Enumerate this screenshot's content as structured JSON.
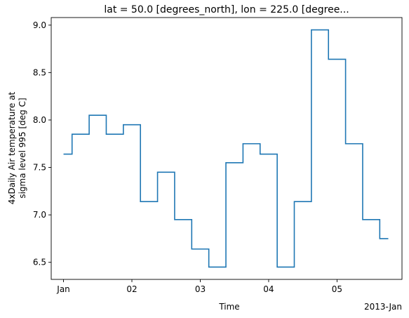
{
  "chart_data": {
    "type": "line",
    "drawstyle": "steps-mid",
    "title": "lat = 50.0 [degrees_north], lon = 225.0 [degree...",
    "xlabel": "Time",
    "ylabel_lines": [
      "4xDaily Air temperature at",
      "sigma level 995 [deg C]"
    ],
    "x_offset_label": "2013-Jan",
    "xlim": [
      -0.18,
      4.95
    ],
    "ylim": [
      6.32,
      9.08
    ],
    "x_ticks": [
      {
        "value": 0,
        "label": "Jan"
      },
      {
        "value": 1,
        "label": "02"
      },
      {
        "value": 2,
        "label": "03"
      },
      {
        "value": 3,
        "label": "04"
      },
      {
        "value": 4,
        "label": "05"
      }
    ],
    "y_ticks": [
      {
        "value": 6.5,
        "label": "6.5"
      },
      {
        "value": 7.0,
        "label": "7.0"
      },
      {
        "value": 7.5,
        "label": "7.5"
      },
      {
        "value": 8.0,
        "label": "8.0"
      },
      {
        "value": 8.5,
        "label": "8.5"
      },
      {
        "value": 9.0,
        "label": "9.0"
      }
    ],
    "grid": false,
    "color": "#1f77b4",
    "series": [
      {
        "x": [
          0,
          0.25,
          0.5,
          0.75,
          1.0,
          1.25,
          1.5,
          1.75,
          2.0,
          2.25,
          2.5,
          2.75,
          3.0,
          3.25,
          3.5,
          3.75,
          4.0,
          4.25,
          4.5,
          4.75
        ],
        "values": [
          7.64,
          7.85,
          8.05,
          7.85,
          7.95,
          7.14,
          7.45,
          6.95,
          6.64,
          6.45,
          7.55,
          7.75,
          7.64,
          6.45,
          7.14,
          8.95,
          8.64,
          7.75,
          6.95,
          6.75
        ]
      }
    ]
  }
}
